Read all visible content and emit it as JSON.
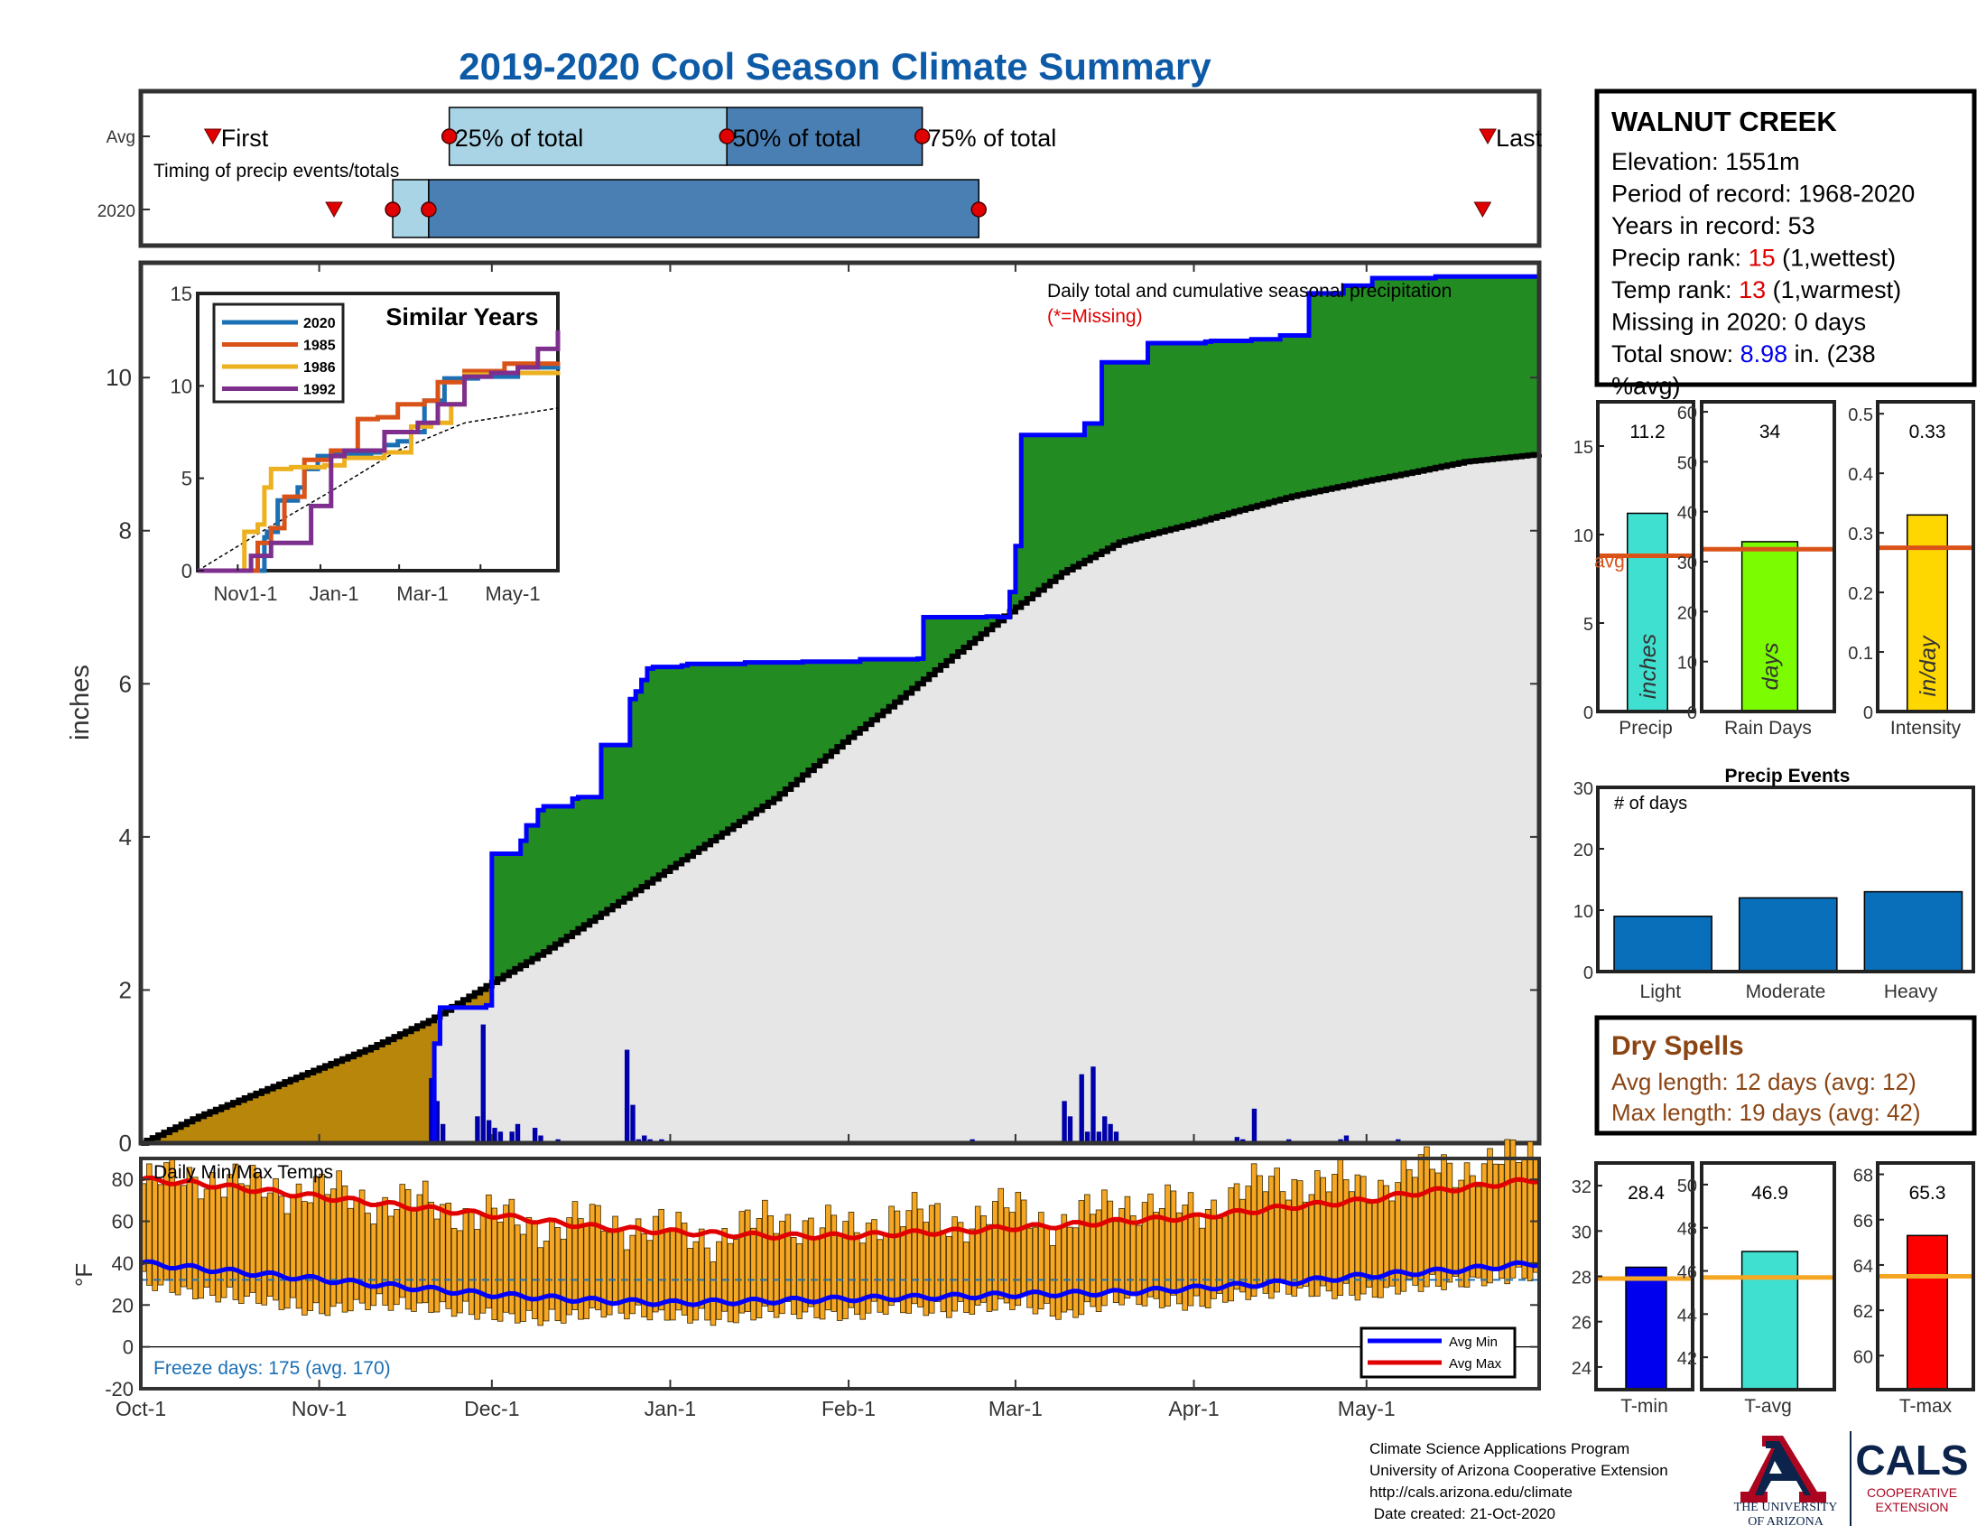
{
  "title": "2019-2020 Cool Season Climate Summary",
  "station": {
    "name": "WALNUT CREEK",
    "lines": [
      {
        "parts": [
          {
            "t": "Elevation: 1551m",
            "c": "#000000"
          }
        ]
      },
      {
        "parts": [
          {
            "t": "Period of record: 1968-2020",
            "c": "#000000"
          }
        ]
      },
      {
        "parts": [
          {
            "t": "Years in record: 53",
            "c": "#000000"
          }
        ]
      },
      {
        "parts": [
          {
            "t": "Precip rank: ",
            "c": "#000000"
          },
          {
            "t": "15",
            "c": "#e00000"
          },
          {
            "t": " (1,wettest)",
            "c": "#000000"
          }
        ]
      },
      {
        "parts": [
          {
            "t": "Temp rank: ",
            "c": "#000000"
          },
          {
            "t": "13",
            "c": "#e00000"
          },
          {
            "t": " (1,warmest)",
            "c": "#000000"
          }
        ]
      },
      {
        "parts": [
          {
            "t": "Missing in 2020: 0 days",
            "c": "#000000"
          }
        ]
      },
      {
        "parts": [
          {
            "t": "Total snow: ",
            "c": "#000000"
          },
          {
            "t": "8.98",
            "c": "#0000ee"
          },
          {
            "t": " in. (238",
            "c": "#000000"
          }
        ]
      },
      {
        "parts": [
          {
            "t": "%avg)",
            "c": "#000000"
          }
        ]
      }
    ]
  },
  "timing": {
    "row_labels": [
      "Avg",
      "2020"
    ],
    "caption": "Timing of precip events/totals",
    "avg_labels": [
      "First",
      "25% of total",
      "50% of total",
      "75% of total",
      "Last"
    ],
    "x_range": [
      "Oct-1",
      "Jun-30"
    ],
    "avg": {
      "first": "Oct-15",
      "p25": "Nov-30",
      "p50": "Jan-23",
      "p75": "Mar-1",
      "last": "Jun-19"
    },
    "y2020": {
      "first": "Nov-19",
      "p25": "Nov-26",
      "p50": "Dec-21",
      "p75": "Mar-12",
      "last": "Jun-18"
    },
    "colors": {
      "light": "#a8d4e6",
      "dark": "#4a7fb4",
      "marker": "#e00000"
    }
  },
  "main_chart": {
    "ylabel": "inches",
    "annotation": "Daily total and cumulative seasonal precipitation",
    "missing_note": "(*=Missing)",
    "ylim": [
      0,
      11.5
    ],
    "yticks": [
      "0",
      "2",
      "4",
      "6",
      "8",
      "10"
    ],
    "colors": {
      "cumulative": "#0000ff",
      "average": "#000000",
      "above_avg": "#228b22",
      "below_avg": "#b8860b",
      "avg_area": "#e6e6e6",
      "daily": "#0000aa"
    }
  },
  "x_axis": {
    "ticks": [
      "Oct-1",
      "Nov-1",
      "Dec-1",
      "Jan-1",
      "Feb-1",
      "Mar-1",
      "Apr-1",
      "May-1"
    ],
    "tick_days": [
      0,
      31,
      61,
      92,
      123,
      152,
      183,
      213
    ],
    "total_days": 243
  },
  "chart_data": [
    {
      "type": "line",
      "title": "Daily total and cumulative seasonal precipitation",
      "ylabel": "inches",
      "ylim": [
        0,
        11.5
      ],
      "series": [
        {
          "name": "Cumulative 2020",
          "color": "#0000ff",
          "x": [
            0,
            50,
            51,
            52,
            60,
            61,
            61,
            66,
            67,
            69,
            70,
            75,
            76,
            79,
            80,
            85,
            86,
            87,
            88,
            89,
            90,
            94,
            95,
            105,
            115,
            125,
            135,
            136,
            136,
            144,
            145,
            147,
            148,
            149,
            150,
            151,
            152,
            153,
            164,
            167,
            175,
            177,
            181,
            182,
            185,
            186,
            190,
            193,
            198,
            203,
            209,
            214,
            225,
            243
          ],
          "y": [
            0,
            0,
            1.3,
            1.77,
            1.8,
            2.1,
            3.78,
            3.95,
            4.15,
            4.35,
            4.4,
            4.5,
            4.52,
            4.52,
            5.2,
            5.8,
            5.9,
            6.05,
            6.2,
            6.22,
            6.22,
            6.24,
            6.26,
            6.28,
            6.29,
            6.32,
            6.33,
            6.4,
            6.87,
            6.87,
            6.87,
            6.88,
            6.88,
            6.87,
            6.87,
            7.2,
            7.8,
            9.25,
            9.4,
            10.2,
            10.45,
            10.45,
            10.45,
            10.45,
            10.47,
            10.48,
            10.48,
            10.5,
            10.55,
            11.1,
            11.2,
            11.3,
            11.32,
            11.32
          ]
        },
        {
          "name": "Average",
          "color": "#000000",
          "x": [
            0,
            10,
            20,
            30,
            40,
            50,
            61,
            70,
            80,
            92,
            100,
            110,
            123,
            130,
            140,
            152,
            160,
            170,
            183,
            190,
            200,
            213,
            220,
            230,
            243
          ],
          "y": [
            0,
            0.35,
            0.65,
            0.95,
            1.25,
            1.6,
            2.1,
            2.5,
            3.0,
            3.6,
            4.0,
            4.5,
            5.3,
            5.7,
            6.3,
            7.0,
            7.45,
            7.85,
            8.1,
            8.25,
            8.45,
            8.65,
            8.75,
            8.9,
            9.0
          ]
        }
      ],
      "daily_precip": {
        "x": [
          50,
          51,
          52,
          58,
          59,
          60,
          61,
          62,
          64,
          65,
          68,
          69,
          72,
          84,
          85,
          86,
          87,
          88,
          90,
          120,
          129,
          144,
          160,
          161,
          163,
          164,
          165,
          166,
          167,
          168,
          169,
          190,
          191,
          193,
          199,
          208,
          209,
          218
        ],
        "y": [
          0.85,
          0.55,
          0.25,
          0.35,
          1.55,
          0.3,
          0.2,
          0.15,
          0.15,
          0.25,
          0.2,
          0.1,
          0.05,
          1.22,
          0.5,
          0.05,
          0.1,
          0.05,
          0.05,
          0.02,
          0.02,
          0.05,
          0.55,
          0.35,
          0.9,
          0.15,
          1.0,
          0.15,
          0.35,
          0.25,
          0.15,
          0.08,
          0.05,
          0.45,
          0.05,
          0.05,
          0.1,
          0.05
        ]
      }
    },
    {
      "type": "line",
      "title": "Similar Years",
      "xticks": [
        "Nov1-1",
        "Jan-1",
        "Mar-1",
        "May-1"
      ],
      "ylim": [
        0,
        15
      ],
      "yticks": [
        "0",
        "5",
        "10",
        "15"
      ],
      "series": [
        {
          "name": "2020",
          "color": "#1a6fb5",
          "x": [
            0,
            30,
            45,
            50,
            52,
            60,
            75,
            80,
            90,
            100,
            130,
            140,
            150,
            160,
            170,
            185,
            210,
            240,
            270
          ],
          "y": [
            0,
            0,
            0,
            1.8,
            2.1,
            3.8,
            4.5,
            5.5,
            6.2,
            6.3,
            6.4,
            6.8,
            7.0,
            7.5,
            9.2,
            10.4,
            10.5,
            11.0,
            11.3
          ]
        },
        {
          "name": "1985",
          "color": "#d95319",
          "x": [
            0,
            35,
            45,
            55,
            65,
            80,
            100,
            120,
            135,
            150,
            170,
            180,
            200,
            230,
            270
          ],
          "y": [
            0,
            0,
            1.5,
            2.3,
            4.0,
            6.0,
            6.5,
            8.2,
            8.3,
            9.0,
            9.2,
            10.2,
            10.8,
            11.2,
            11.3
          ]
        },
        {
          "name": "1986",
          "color": "#edb120",
          "x": [
            0,
            30,
            35,
            45,
            50,
            55,
            70,
            95,
            110,
            140,
            160,
            175,
            190,
            200,
            220,
            270
          ],
          "y": [
            0,
            0,
            2.1,
            2.5,
            4.5,
            5.5,
            5.6,
            5.7,
            6.1,
            6.4,
            7.8,
            8.0,
            9.0,
            10.6,
            10.7,
            10.8
          ]
        },
        {
          "name": "1992",
          "color": "#7e2f8e",
          "x": [
            0,
            30,
            40,
            55,
            70,
            85,
            100,
            110,
            140,
            165,
            180,
            200,
            220,
            240,
            255,
            270
          ],
          "y": [
            0,
            0,
            0.8,
            1.5,
            1.5,
            3.5,
            6.2,
            6.5,
            7.5,
            8.0,
            9.0,
            10.5,
            10.7,
            11.0,
            12.0,
            13.0
          ]
        }
      ],
      "average_curve": {
        "x": [
          0,
          50,
          100,
          150,
          200,
          270
        ],
        "y": [
          0,
          2.2,
          4.3,
          6.5,
          8.0,
          8.8
        ]
      }
    },
    {
      "type": "bar",
      "title": "Precip",
      "categories": [
        "Precip"
      ],
      "values": [
        11.2
      ],
      "value_label": "11.2",
      "avg": 8.8,
      "avg_label": "avg",
      "ylim": [
        0,
        17.5
      ],
      "yticks": [
        "0",
        "5",
        "10",
        "15"
      ],
      "unit": "inches",
      "color": "#40e0d0"
    },
    {
      "type": "bar",
      "title": "Rain Days",
      "categories": [
        "Rain Days"
      ],
      "values": [
        34
      ],
      "value_label": "34",
      "avg": 32.5,
      "ylim": [
        0,
        62
      ],
      "yticks": [
        "0",
        "10",
        "20",
        "30",
        "40",
        "50",
        "60"
      ],
      "unit": "days",
      "color": "#7cfc00"
    },
    {
      "type": "bar",
      "title": "Intensity",
      "categories": [
        "Intensity"
      ],
      "values": [
        0.33
      ],
      "value_label": "0.33",
      "avg": 0.275,
      "ylim": [
        0,
        0.52
      ],
      "yticks": [
        "0",
        "0.1",
        "0.2",
        "0.3",
        "0.4",
        "0.5"
      ],
      "unit": "in/day",
      "color": "#ffd700"
    },
    {
      "type": "bar",
      "title": "Precip Events",
      "ylabel": "# of days",
      "categories": [
        "Light",
        "Moderate",
        "Heavy"
      ],
      "values": [
        9,
        12,
        13
      ],
      "ylim": [
        0,
        30
      ],
      "yticks": [
        "0",
        "10",
        "20",
        "30"
      ],
      "color": "#0a6fba"
    },
    {
      "type": "bar",
      "title": "Daily Min/Max Temps",
      "ylabel": "°F",
      "ylim": [
        -20,
        90
      ],
      "yticks": [
        "-20",
        "0",
        "20",
        "40",
        "60",
        "80"
      ],
      "bar_color": "#f5a623",
      "daily_max_x": [
        0,
        10,
        20,
        30,
        40,
        50,
        61,
        70,
        80,
        92,
        100,
        110,
        123,
        130,
        140,
        152,
        160,
        170,
        183,
        190,
        200,
        213,
        220,
        230,
        243
      ],
      "daily_max_y": [
        78,
        82,
        76,
        75,
        70,
        68,
        62,
        58,
        60,
        55,
        52,
        62,
        55,
        64,
        60,
        66,
        58,
        70,
        65,
        74,
        80,
        76,
        84,
        86,
        92
      ],
      "daily_min_y": [
        36,
        30,
        28,
        22,
        26,
        24,
        20,
        18,
        22,
        20,
        18,
        22,
        20,
        24,
        22,
        26,
        20,
        28,
        25,
        30,
        32,
        30,
        34,
        36,
        40
      ],
      "series": [
        {
          "name": "Avg Min",
          "color": "#0000ff",
          "x": [
            0,
            20,
            40,
            61,
            80,
            92,
            110,
            123,
            140,
            152,
            170,
            183,
            200,
            213,
            230,
            243
          ],
          "y": [
            40,
            35,
            30,
            25,
            22,
            21,
            22,
            23,
            24,
            25,
            26,
            28,
            31,
            34,
            37,
            40
          ]
        },
        {
          "name": "Avg Max",
          "color": "#e00000",
          "x": [
            0,
            10,
            20,
            30,
            40,
            50,
            61,
            70,
            80,
            92,
            100,
            110,
            123,
            130,
            140,
            152,
            160,
            170,
            183,
            190,
            200,
            213,
            220,
            230,
            243
          ],
          "y": [
            80,
            78,
            75,
            72,
            69,
            66,
            63,
            60,
            57,
            55,
            54,
            53,
            53,
            54,
            55,
            57,
            58,
            60,
            62,
            64,
            67,
            70,
            73,
            76,
            80
          ]
        }
      ],
      "freeze_line": 32,
      "freeze_note": "Freeze days: 175 (avg. 170)",
      "legend": [
        "Avg Min",
        "Avg Max"
      ]
    },
    {
      "type": "bar",
      "title": "T-min",
      "categories": [
        "T-min"
      ],
      "values": [
        28.4
      ],
      "value_label": "28.4",
      "avg": 27.9,
      "ylim": [
        23,
        33
      ],
      "yticks": [
        "24",
        "26",
        "28",
        "30",
        "32"
      ],
      "color": "#0000ee"
    },
    {
      "type": "bar",
      "title": "T-avg",
      "categories": [
        "T-avg"
      ],
      "values": [
        46.9
      ],
      "value_label": "46.9",
      "avg": 45.7,
      "ylim": [
        40.5,
        51
      ],
      "yticks": [
        "42",
        "44",
        "46",
        "48",
        "50"
      ],
      "color": "#40e0d0"
    },
    {
      "type": "bar",
      "title": "T-max",
      "categories": [
        "T-max"
      ],
      "values": [
        65.3
      ],
      "value_label": "65.3",
      "avg": 63.5,
      "ylim": [
        58.5,
        68.5
      ],
      "yticks": [
        "60",
        "62",
        "64",
        "66",
        "68"
      ],
      "color": "#ff0000"
    }
  ],
  "dry_spells": {
    "title": "Dry Spells",
    "avg_length": "Avg length: 12 days (avg: 12)",
    "max_length": "Max length: 19 days (avg: 42)",
    "color": "#8b4513"
  },
  "footer": {
    "lines": [
      "Climate Science Applications Program",
      "University of Arizona Cooperative Extension",
      "http://cals.arizona.edu/climate",
      " Date created: 21-Oct-2020"
    ]
  },
  "logos": {
    "ua_line1": "THE UNIVERSITY",
    "ua_line2": "OF ARIZONA",
    "cals": "CALS",
    "cals_sub1": "COOPERATIVE",
    "cals_sub2": "EXTENSION"
  }
}
